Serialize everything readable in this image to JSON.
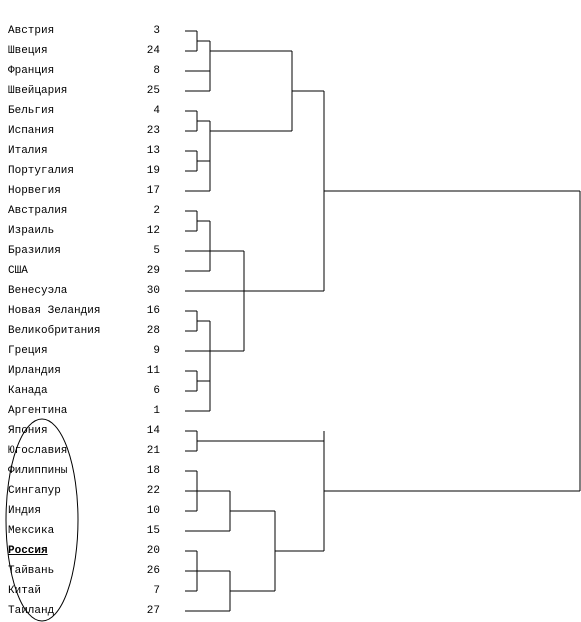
{
  "leaves": [
    {
      "label": "Австрия",
      "number": 3
    },
    {
      "label": "Швеция",
      "number": 24
    },
    {
      "label": "Франция",
      "number": 8
    },
    {
      "label": "Швейцария",
      "number": 25
    },
    {
      "label": "Бельгия",
      "number": 4
    },
    {
      "label": "Испания",
      "number": 23
    },
    {
      "label": "Италия",
      "number": 13
    },
    {
      "label": "Португалия",
      "number": 19
    },
    {
      "label": "Норвегия",
      "number": 17
    },
    {
      "label": "Австралия",
      "number": 2
    },
    {
      "label": "Израиль",
      "number": 12
    },
    {
      "label": "Бразилия",
      "number": 5
    },
    {
      "label": "США",
      "number": 29
    },
    {
      "label": "Венесуэла",
      "number": 30
    },
    {
      "label": "Новая Зеландия",
      "number": 16
    },
    {
      "label": "Великобритания",
      "number": 28
    },
    {
      "label": "Греция",
      "number": 9
    },
    {
      "label": "Ирландия",
      "number": 11
    },
    {
      "label": "Канада",
      "number": 6
    },
    {
      "label": "Аргентина",
      "number": 1
    },
    {
      "label": "Япония",
      "number": 14
    },
    {
      "label": "Югославия",
      "number": 21
    },
    {
      "label": "Филиппины",
      "number": 18
    },
    {
      "label": "Сингапур",
      "number": 22
    },
    {
      "label": "Индия",
      "number": 10
    },
    {
      "label": "Мексика",
      "number": 15
    },
    {
      "label": "Россия",
      "number": 20,
      "bold": true
    },
    {
      "label": "Тайвань",
      "number": 26
    },
    {
      "label": "Китай",
      "number": 7
    },
    {
      "label": "Таиланд",
      "number": 27
    }
  ]
}
